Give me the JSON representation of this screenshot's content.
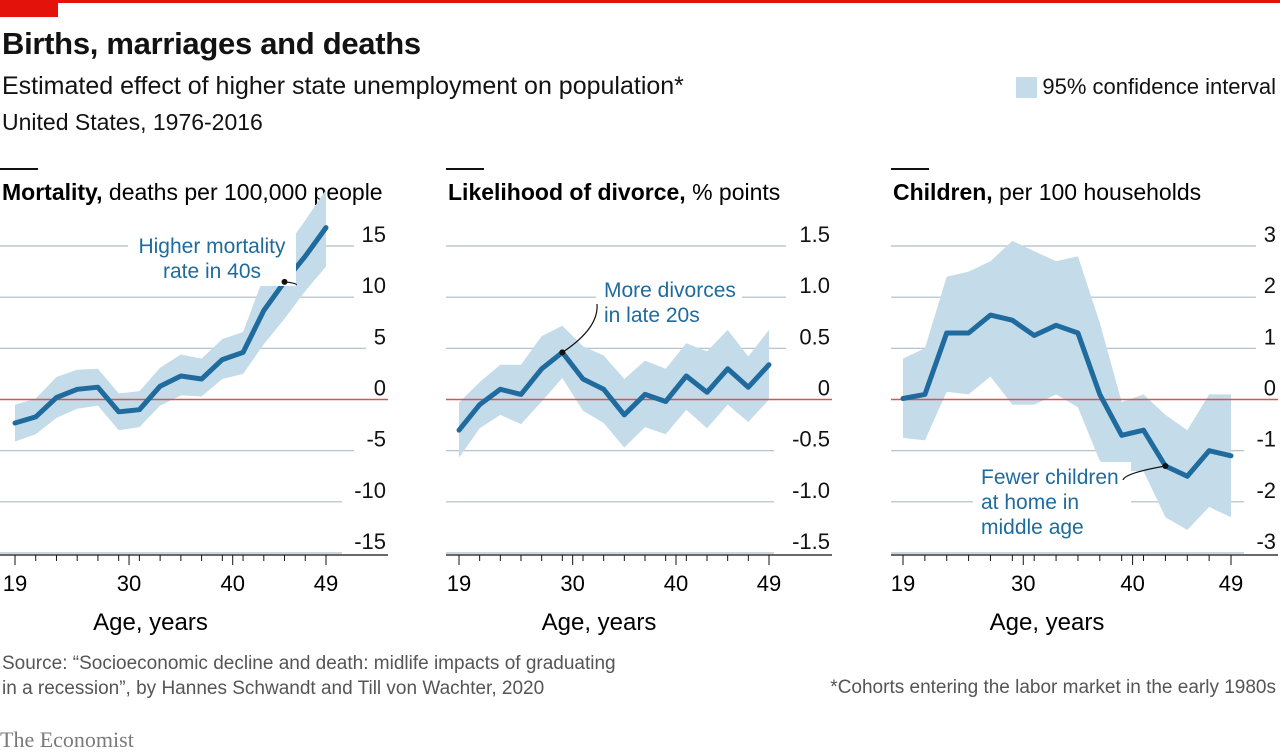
{
  "header": {
    "title": "Births, marriages and deaths",
    "subtitle": "Estimated effect of higher state unemployment on population*",
    "subtitle2": "United States, 1976-2016",
    "legend_label": "95% confidence interval"
  },
  "footer": {
    "source_line1": "Source: “Socioeconomic decline and death: midlife impacts of graduating",
    "source_line2": "in a recession”, by Hannes Schwandt and Till von Wachter, 2020",
    "footnote": "*Cohorts entering the labor market in the early 1980s",
    "logo": "The Economist"
  },
  "colors": {
    "line": "#1f6b9e",
    "band": "#c4dbe9",
    "zero_line": "#d9534f",
    "gridline": "#aebdc6",
    "accent": "#e3120b",
    "annotation_text": "#1f6b9e"
  },
  "chart_data": [
    {
      "type": "line",
      "title_bold": "Mortality,",
      "title_rest": " deaths per 100,000 people",
      "xlabel": "Age, years",
      "x_ticks": [
        19,
        30,
        40,
        49
      ],
      "ylim": [
        -15,
        15
      ],
      "y_ticks": [
        15,
        10,
        5,
        0,
        -5,
        -10,
        -15
      ],
      "y_tick_labels": [
        "15",
        "10",
        "5",
        "0",
        "-5",
        "-10",
        "-15"
      ],
      "annotation": {
        "lines": [
          "Higher mortality",
          "rate in 40s"
        ],
        "point_age": 45
      },
      "series": [
        {
          "x": [
            19,
            21,
            23,
            25,
            27,
            29,
            31,
            33,
            35,
            37,
            39,
            41,
            43,
            45,
            47,
            49
          ],
          "values": [
            -2.3,
            -1.7,
            0.2,
            1.0,
            1.2,
            -1.2,
            -1.0,
            1.3,
            2.3,
            2.0,
            3.9,
            4.6,
            8.7,
            11.5,
            14.0,
            16.8
          ],
          "upper": [
            -0.5,
            0.1,
            2.2,
            2.9,
            3.0,
            0.6,
            0.8,
            3.1,
            4.4,
            4.0,
            5.9,
            6.6,
            12.0,
            14.7,
            17.5,
            20.5
          ],
          "lower": [
            -4.1,
            -3.4,
            -1.8,
            -0.9,
            -0.6,
            -3.0,
            -2.7,
            -0.6,
            0.4,
            0.3,
            2.0,
            2.5,
            5.4,
            7.9,
            10.6,
            13.0
          ]
        }
      ]
    },
    {
      "type": "line",
      "title_bold": "Likelihood of divorce,",
      "title_rest": " % points",
      "xlabel": "Age, years",
      "x_ticks": [
        19,
        30,
        40,
        49
      ],
      "ylim": [
        -1.5,
        1.5
      ],
      "y_ticks": [
        1.5,
        1.0,
        0.5,
        0,
        -0.5,
        -1.0,
        -1.5
      ],
      "y_tick_labels": [
        "1.5",
        "1.0",
        "0.5",
        "0",
        "-0.5",
        "-1.0",
        "-1.5"
      ],
      "annotation": {
        "lines": [
          "More divorces",
          "in late 20s"
        ],
        "point_age": 29
      },
      "series": [
        {
          "x": [
            19,
            21,
            23,
            25,
            27,
            29,
            31,
            33,
            35,
            37,
            39,
            41,
            43,
            45,
            47,
            49
          ],
          "values": [
            -0.3,
            -0.05,
            0.1,
            0.05,
            0.3,
            0.46,
            0.2,
            0.1,
            -0.15,
            0.05,
            -0.02,
            0.23,
            0.07,
            0.3,
            0.12,
            0.34
          ],
          "upper": [
            -0.03,
            0.17,
            0.34,
            0.34,
            0.62,
            0.72,
            0.52,
            0.43,
            0.2,
            0.38,
            0.3,
            0.55,
            0.47,
            0.68,
            0.42,
            0.68
          ],
          "lower": [
            -0.57,
            -0.28,
            -0.15,
            -0.24,
            -0.02,
            0.21,
            -0.11,
            -0.23,
            -0.47,
            -0.27,
            -0.34,
            -0.1,
            -0.28,
            -0.05,
            -0.22,
            0.0
          ]
        }
      ]
    },
    {
      "type": "line",
      "title_bold": "Children,",
      "title_rest": " per 100 households",
      "xlabel": "Age, years",
      "x_ticks": [
        19,
        30,
        40,
        49
      ],
      "ylim": [
        -3,
        3
      ],
      "y_ticks": [
        3,
        2,
        1,
        0,
        -1,
        -2,
        -3
      ],
      "y_tick_labels": [
        "3",
        "2",
        "1",
        "0",
        "-1",
        "-2",
        "-3"
      ],
      "annotation": {
        "lines": [
          "Fewer children",
          "at home in",
          "middle age"
        ],
        "point_age": 43
      },
      "series": [
        {
          "x": [
            19,
            21,
            23,
            25,
            27,
            29,
            31,
            33,
            35,
            37,
            39,
            41,
            43,
            45,
            47,
            49
          ],
          "values": [
            0.02,
            0.1,
            1.3,
            1.3,
            1.65,
            1.55,
            1.25,
            1.45,
            1.3,
            0.1,
            -0.7,
            -0.6,
            -1.3,
            -1.5,
            -1.0,
            -1.1
          ],
          "upper": [
            0.8,
            1.0,
            2.4,
            2.5,
            2.7,
            3.1,
            2.9,
            2.7,
            2.8,
            1.5,
            -0.05,
            0.1,
            -0.3,
            -0.6,
            0.1,
            0.1
          ],
          "lower": [
            -0.75,
            -0.8,
            0.15,
            0.1,
            0.45,
            -0.1,
            -0.1,
            0.1,
            -0.15,
            -1.2,
            -1.4,
            -1.4,
            -2.3,
            -2.55,
            -2.1,
            -2.3
          ]
        }
      ]
    }
  ]
}
